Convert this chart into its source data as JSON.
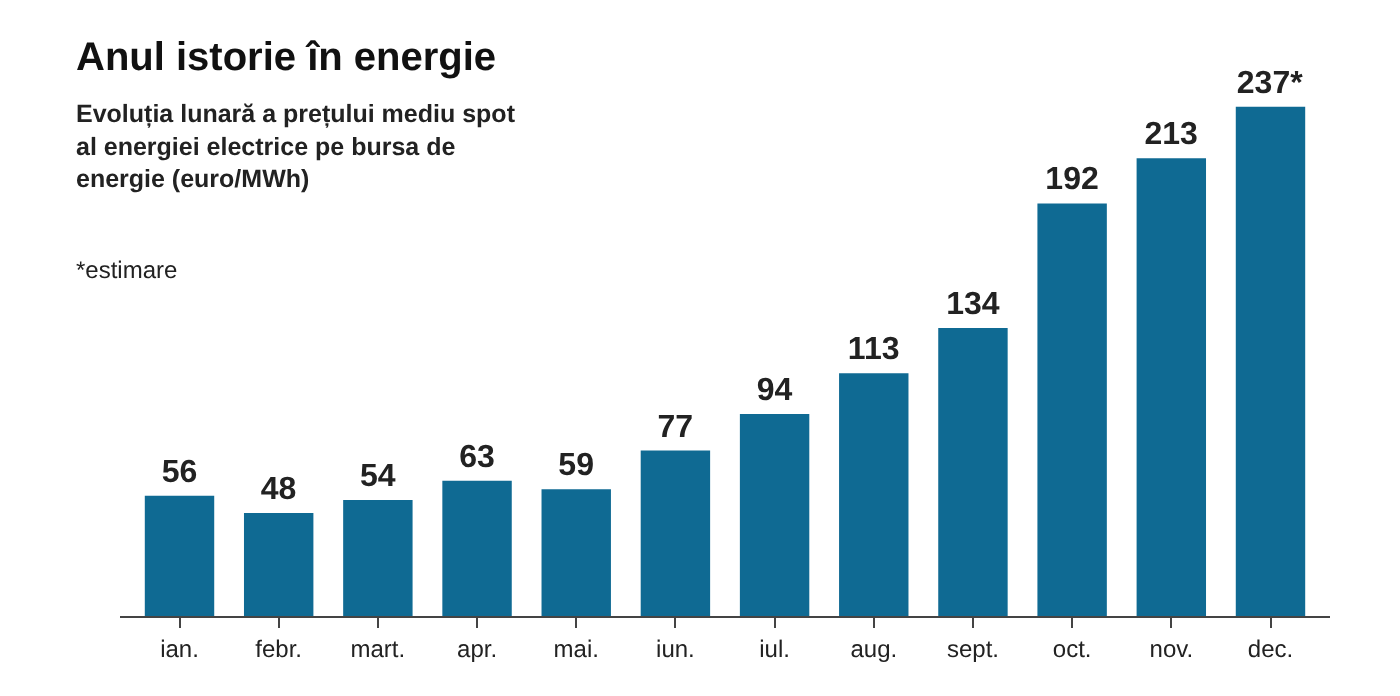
{
  "chart_data": {
    "type": "bar",
    "title": "Anul istorie în energie",
    "subtitle": "Evoluția lunară a prețului mediu spot\nal energiei electrice pe bursa de\nenergie (euro/MWh)",
    "annotations": [
      "*estimare"
    ],
    "categories": [
      "ian.",
      "febr.",
      "mart.",
      "apr.",
      "mai.",
      "iun.",
      "iul.",
      "aug.",
      "sept.",
      "oct.",
      "nov.",
      "dec."
    ],
    "values": [
      56,
      48,
      54,
      63,
      59,
      77,
      94,
      113,
      134,
      192,
      213,
      237
    ],
    "value_labels": [
      "56",
      "48",
      "54",
      "63",
      "59",
      "77",
      "94",
      "113",
      "134",
      "192",
      "213",
      "237*"
    ],
    "color": "#0f6a93",
    "legend": false,
    "grid": false
  }
}
